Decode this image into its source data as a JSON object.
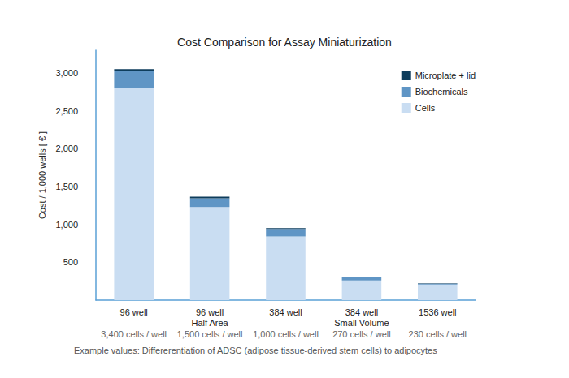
{
  "chart_data": {
    "type": "bar",
    "title": "Cost Comparison for Assay Miniaturization",
    "y_label": "Cost / 1,000 wells [ € ]",
    "footnote": "Example values: Differerentiation of ADSC (adipose tissue-derived stem cells) to adipocytes",
    "categories": [
      "96 well",
      "96 well\nHalf Area",
      "384 well",
      "384 well\nSmall Volume",
      "1536 well"
    ],
    "sublabels": [
      "3,400 cells / well",
      "1,500 cells / well",
      "1,000 cells / well",
      "270 cells / well",
      "230 cells / well"
    ],
    "series": [
      {
        "name": "Cells",
        "color": "#c9ddf2",
        "values": [
          2800,
          1230,
          840,
          260,
          205
        ]
      },
      {
        "name": "Biochemicals",
        "color": "#5f95c5",
        "values": [
          230,
          115,
          100,
          40,
          12
        ]
      },
      {
        "name": "Microplate + lid",
        "color": "#0e3d5c",
        "values": [
          20,
          20,
          10,
          10,
          5
        ]
      }
    ],
    "legend_order": [
      "Microplate + lid",
      "Biochemicals",
      "Cells"
    ],
    "stacked": true,
    "grid": false,
    "legend": "top-right",
    "ylim": [
      0,
      3300
    ],
    "yticks": [
      500,
      {
        "value": 1000,
        "label": "1,000"
      },
      {
        "value": 1500,
        "label": "1,500"
      },
      {
        "value": 2000,
        "label": "2,000"
      },
      {
        "value": 2500,
        "label": "2,500"
      },
      {
        "value": 3000,
        "label": "3,000"
      }
    ]
  }
}
